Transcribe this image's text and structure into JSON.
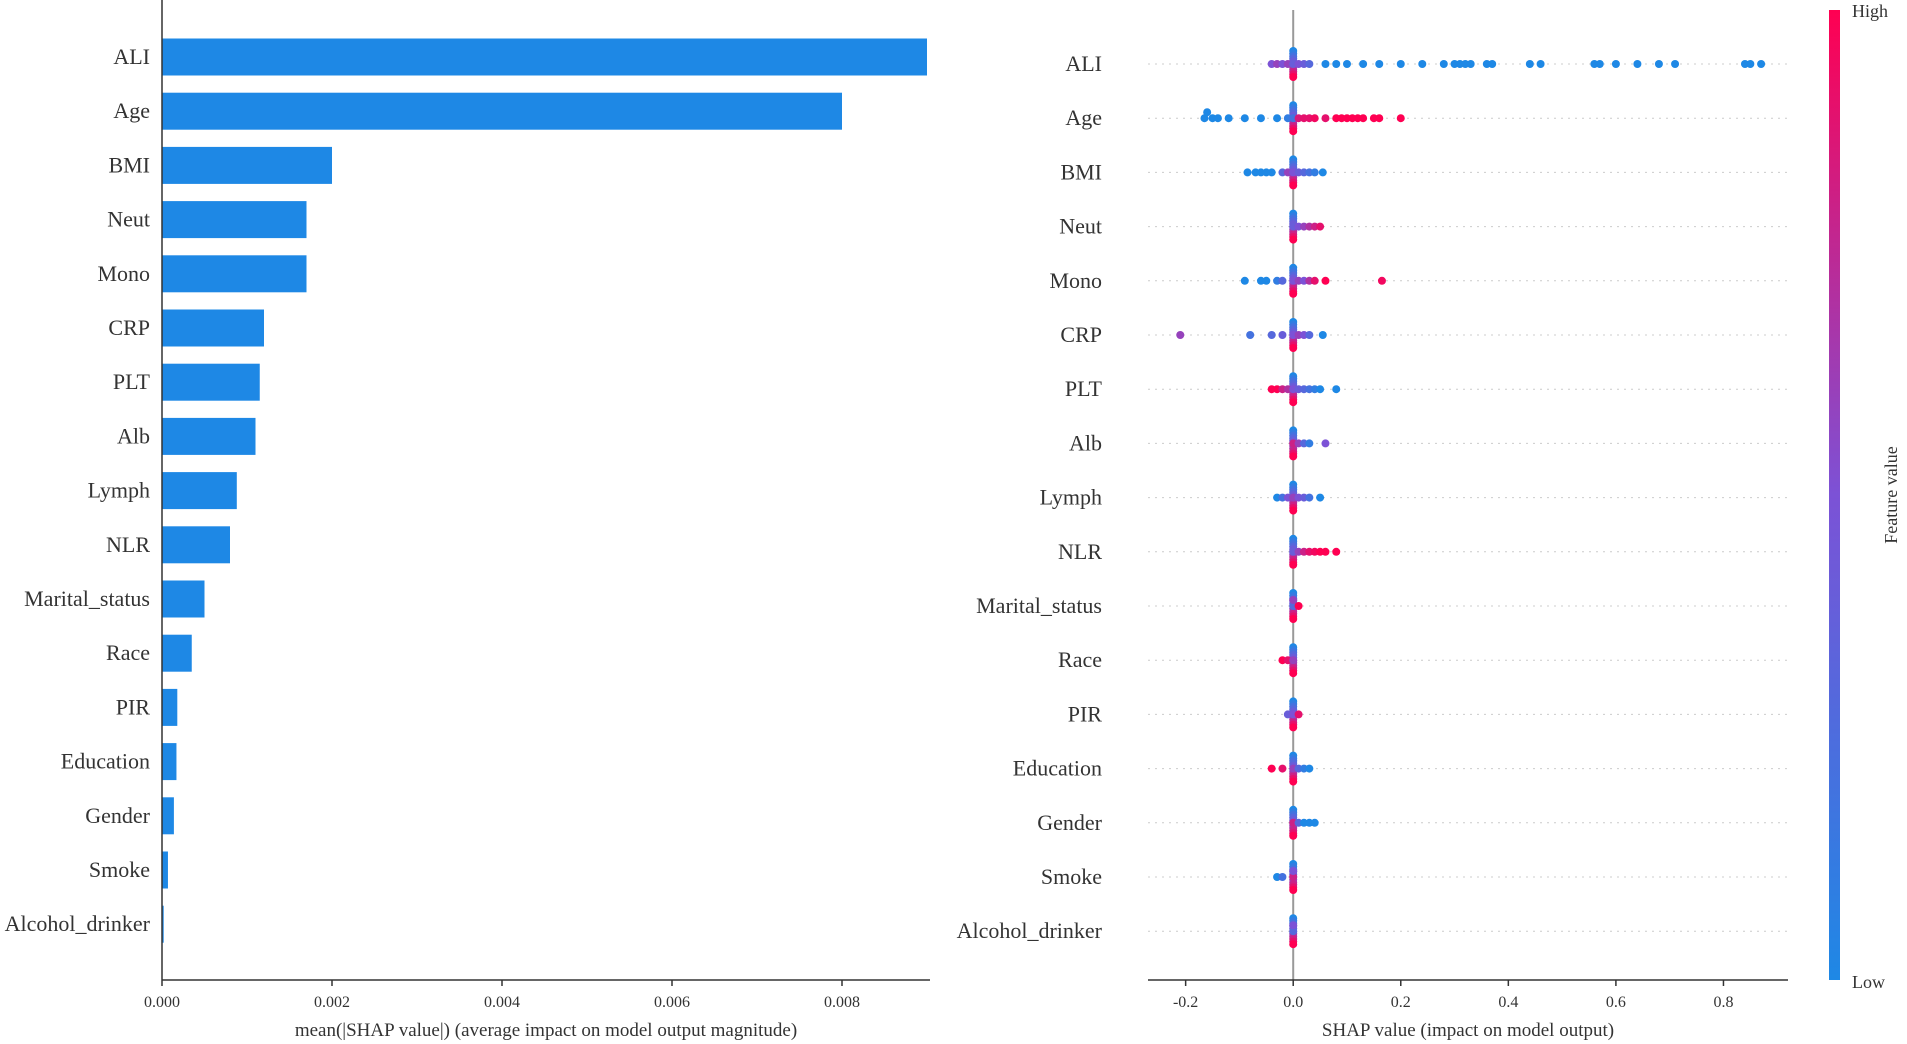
{
  "colors": {
    "bar": "#1E88E5",
    "low": "#1E88E5",
    "high": "#FF0052",
    "axis": "#333333",
    "grid": "#cccccc"
  },
  "chart_data": [
    {
      "type": "bar",
      "orientation": "horizontal",
      "title": "",
      "categories": [
        "ALI",
        "Age",
        "BMI",
        "Neut",
        "Mono",
        "CRP",
        "PLT",
        "Alb",
        "Lymph",
        "NLR",
        "Marital_status",
        "Race",
        "PIR",
        "Education",
        "Gender",
        "Smoke",
        "Alcohol_drinker"
      ],
      "values": [
        0.009,
        0.008,
        0.002,
        0.0017,
        0.0017,
        0.0012,
        0.00115,
        0.0011,
        0.00088,
        0.0008,
        0.0005,
        0.00035,
        0.00018,
        0.00017,
        0.00014,
        7e-05,
        2e-05
      ],
      "xlabel": "mean(|SHAP value|) (average impact on model output magnitude)",
      "ylabel": "",
      "xlim": [
        0,
        0.009
      ],
      "xticks": [
        0.0,
        0.002,
        0.004,
        0.006,
        0.008
      ],
      "xtick_labels": [
        "0.000",
        "0.002",
        "0.004",
        "0.006",
        "0.008"
      ]
    },
    {
      "type": "scatter",
      "subtype": "beeswarm",
      "title": "",
      "categories": [
        "ALI",
        "Age",
        "BMI",
        "Neut",
        "Mono",
        "CRP",
        "PLT",
        "Alb",
        "Lymph",
        "NLR",
        "Marital_status",
        "Race",
        "PIR",
        "Education",
        "Gender",
        "Smoke",
        "Alcohol_drinker"
      ],
      "xlabel": "SHAP value (impact on model output)",
      "ylabel": "",
      "xlim": [
        -0.27,
        0.92
      ],
      "xticks": [
        -0.2,
        0.0,
        0.2,
        0.4,
        0.6,
        0.8
      ],
      "xtick_labels": [
        "-0.2",
        "0.0",
        "0.2",
        "0.4",
        "0.6",
        "0.8"
      ],
      "colorbar": {
        "label": "Feature value",
        "high": "High",
        "low": "Low"
      },
      "series": [
        {
          "name": "ALI",
          "points": [
            [
              -0.04,
              0.5
            ],
            [
              -0.03,
              0.6
            ],
            [
              -0.02,
              0.5
            ],
            [
              -0.01,
              0.6
            ],
            [
              0.0,
              0.4
            ],
            [
              0.01,
              0.5
            ],
            [
              0.02,
              0.4
            ],
            [
              0.03,
              0.3
            ],
            [
              0.06,
              0.0
            ],
            [
              0.08,
              0.0
            ],
            [
              0.1,
              0.0
            ],
            [
              0.13,
              0.0
            ],
            [
              0.16,
              0.0
            ],
            [
              0.2,
              0.0
            ],
            [
              0.24,
              0.0
            ],
            [
              0.28,
              0.0
            ],
            [
              0.3,
              0.0
            ],
            [
              0.31,
              0.0
            ],
            [
              0.32,
              0.0
            ],
            [
              0.33,
              0.0
            ],
            [
              0.36,
              0.0
            ],
            [
              0.37,
              0.0
            ],
            [
              0.44,
              0.0
            ],
            [
              0.46,
              0.0
            ],
            [
              0.56,
              0.0
            ],
            [
              0.57,
              0.0
            ],
            [
              0.6,
              0.0
            ],
            [
              0.64,
              0.0
            ],
            [
              0.68,
              0.0
            ],
            [
              0.71,
              0.0
            ],
            [
              0.84,
              0.0
            ],
            [
              0.85,
              0.0
            ],
            [
              0.87,
              0.0
            ]
          ]
        },
        {
          "name": "Age",
          "points": [
            [
              -0.165,
              0.0
            ],
            [
              -0.16,
              0.0
            ],
            [
              -0.15,
              0.0
            ],
            [
              -0.14,
              0.0
            ],
            [
              -0.12,
              0.0
            ],
            [
              -0.09,
              0.0
            ],
            [
              -0.06,
              0.0
            ],
            [
              -0.03,
              0.0
            ],
            [
              -0.01,
              0.1
            ],
            [
              0.0,
              0.2
            ],
            [
              0.01,
              0.85
            ],
            [
              0.02,
              0.9
            ],
            [
              0.03,
              0.9
            ],
            [
              0.04,
              0.95
            ],
            [
              0.06,
              0.9
            ],
            [
              0.08,
              1.0
            ],
            [
              0.09,
              1.0
            ],
            [
              0.1,
              1.0
            ],
            [
              0.11,
              1.0
            ],
            [
              0.12,
              1.0
            ],
            [
              0.13,
              1.0
            ],
            [
              0.15,
              1.0
            ],
            [
              0.16,
              1.0
            ],
            [
              0.2,
              1.0
            ]
          ]
        },
        {
          "name": "BMI",
          "points": [
            [
              -0.085,
              0.0
            ],
            [
              -0.07,
              0.0
            ],
            [
              -0.06,
              0.0
            ],
            [
              -0.05,
              0.0
            ],
            [
              -0.04,
              0.0
            ],
            [
              -0.02,
              0.3
            ],
            [
              -0.01,
              0.6
            ],
            [
              0.0,
              0.5
            ],
            [
              0.01,
              0.4
            ],
            [
              0.02,
              0.3
            ],
            [
              0.03,
              0.2
            ],
            [
              0.04,
              0.1
            ],
            [
              0.055,
              0.0
            ]
          ]
        },
        {
          "name": "Neut",
          "points": [
            [
              0.0,
              0.4
            ],
            [
              0.01,
              0.5
            ],
            [
              0.02,
              0.6
            ],
            [
              0.03,
              0.7
            ],
            [
              0.04,
              0.8
            ],
            [
              0.05,
              0.9
            ]
          ]
        },
        {
          "name": "Mono",
          "points": [
            [
              -0.09,
              0.0
            ],
            [
              -0.06,
              0.0
            ],
            [
              -0.05,
              0.0
            ],
            [
              -0.03,
              0.1
            ],
            [
              -0.02,
              0.3
            ],
            [
              0.0,
              0.5
            ],
            [
              0.01,
              0.6
            ],
            [
              0.02,
              0.5
            ],
            [
              0.03,
              0.7
            ],
            [
              0.04,
              0.9
            ],
            [
              0.06,
              1.0
            ],
            [
              0.165,
              0.95
            ]
          ]
        },
        {
          "name": "CRP",
          "points": [
            [
              -0.21,
              0.6
            ],
            [
              -0.08,
              0.2
            ],
            [
              -0.04,
              0.3
            ],
            [
              -0.02,
              0.4
            ],
            [
              0.0,
              0.5
            ],
            [
              0.01,
              0.6
            ],
            [
              0.02,
              0.5
            ],
            [
              0.03,
              0.3
            ],
            [
              0.055,
              0.0
            ]
          ]
        },
        {
          "name": "PLT",
          "points": [
            [
              -0.04,
              1.0
            ],
            [
              -0.03,
              1.0
            ],
            [
              -0.02,
              0.8
            ],
            [
              -0.01,
              0.7
            ],
            [
              0.0,
              0.5
            ],
            [
              0.01,
              0.4
            ],
            [
              0.02,
              0.3
            ],
            [
              0.03,
              0.2
            ],
            [
              0.04,
              0.1
            ],
            [
              0.05,
              0.0
            ],
            [
              0.08,
              0.0
            ]
          ]
        },
        {
          "name": "Alb",
          "points": [
            [
              0.0,
              0.8
            ],
            [
              0.01,
              0.6
            ],
            [
              0.02,
              0.3
            ],
            [
              0.03,
              0.1
            ],
            [
              0.06,
              0.5
            ]
          ]
        },
        {
          "name": "Lymph",
          "points": [
            [
              -0.03,
              0.0
            ],
            [
              -0.02,
              0.2
            ],
            [
              -0.01,
              0.5
            ],
            [
              0.0,
              0.6
            ],
            [
              0.01,
              0.5
            ],
            [
              0.02,
              0.4
            ],
            [
              0.03,
              0.2
            ],
            [
              0.05,
              0.0
            ]
          ]
        },
        {
          "name": "NLR",
          "points": [
            [
              0.0,
              0.4
            ],
            [
              0.01,
              0.6
            ],
            [
              0.02,
              0.8
            ],
            [
              0.03,
              0.9
            ],
            [
              0.04,
              0.95
            ],
            [
              0.05,
              1.0
            ],
            [
              0.06,
              1.0
            ],
            [
              0.08,
              1.0
            ]
          ]
        },
        {
          "name": "Marital_status",
          "points": [
            [
              0.0,
              0.3
            ],
            [
              0.0,
              0.6
            ],
            [
              0.01,
              1.0
            ]
          ]
        },
        {
          "name": "Race",
          "points": [
            [
              -0.02,
              1.0
            ],
            [
              -0.01,
              0.9
            ],
            [
              0.0,
              0.6
            ]
          ]
        },
        {
          "name": "PIR",
          "points": [
            [
              -0.01,
              0.4
            ],
            [
              0.0,
              0.5
            ],
            [
              0.01,
              0.9
            ]
          ]
        },
        {
          "name": "Education",
          "points": [
            [
              -0.04,
              1.0
            ],
            [
              -0.02,
              0.9
            ],
            [
              0.0,
              0.6
            ],
            [
              0.01,
              0.3
            ],
            [
              0.02,
              0.1
            ],
            [
              0.03,
              0.0
            ]
          ]
        },
        {
          "name": "Gender",
          "points": [
            [
              0.0,
              0.8
            ],
            [
              0.01,
              0.3
            ],
            [
              0.02,
              0.0
            ],
            [
              0.03,
              0.0
            ],
            [
              0.04,
              0.0
            ]
          ]
        },
        {
          "name": "Smoke",
          "points": [
            [
              -0.03,
              0.0
            ],
            [
              -0.02,
              0.2
            ],
            [
              0.0,
              0.8
            ],
            [
              0.0,
              0.5
            ]
          ]
        },
        {
          "name": "Alcohol_drinker",
          "points": [
            [
              0.0,
              0.3
            ],
            [
              0.0,
              0.5
            ]
          ]
        }
      ]
    }
  ]
}
